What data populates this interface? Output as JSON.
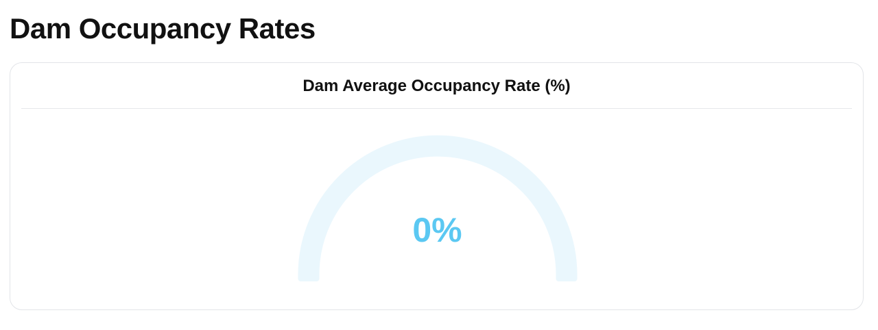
{
  "page": {
    "title": "Dam Occupancy Rates"
  },
  "card": {
    "title": "Dam Average Occupancy Rate (%)"
  },
  "gauge": {
    "value_label": "0%",
    "value": 0,
    "max": 100,
    "track_color": "#eaf7fd",
    "fill_color": "#5bc8f2",
    "text_color": "#5bc8f2"
  }
}
